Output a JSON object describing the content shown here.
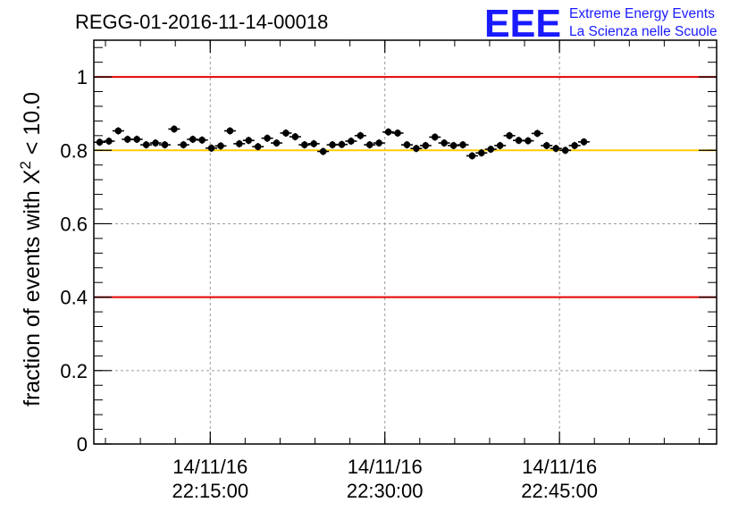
{
  "title": "REGG-01-2016-11-14-00018",
  "logo": {
    "mark": "EEE",
    "line1": "Extreme Energy Events",
    "line2": "La Scienza nelle Scuole",
    "color": "#1a1aff"
  },
  "colors": {
    "threshold_red": "#e60000",
    "threshold_yellow": "#ffcc00",
    "marker": "#000000",
    "grid": "#9a9a9a"
  },
  "chart_data": {
    "type": "scatter",
    "title": "REGG-01-2016-11-14-00018",
    "ylabel_parts": [
      "fraction of events with ",
      "X",
      "2",
      " < 10.0"
    ],
    "xlabel": "",
    "x_start": "22:05:00",
    "x_end": "22:58:30",
    "x_step_min": 0.8,
    "ylim": [
      0,
      1.1
    ],
    "yticks": [
      0,
      0.2,
      0.4,
      0.6,
      0.8,
      1
    ],
    "ytick_labels": [
      "0",
      "0.2",
      "0.4",
      "0.6",
      "0.8",
      "1"
    ],
    "xticks": [
      {
        "time": "22:15:00",
        "date": "14/11/16",
        "clock": "22:15:00"
      },
      {
        "time": "22:30:00",
        "date": "14/11/16",
        "clock": "22:30:00"
      },
      {
        "time": "22:45:00",
        "date": "14/11/16",
        "clock": "22:45:00"
      }
    ],
    "grid": true,
    "reference_lines": [
      {
        "y": 1.0,
        "color": "#e60000"
      },
      {
        "y": 0.8,
        "color": "#ffcc00"
      },
      {
        "y": 0.4,
        "color": "#e60000"
      }
    ],
    "series": [
      {
        "values": [
          0.822,
          0.825,
          0.853,
          0.83,
          0.83,
          0.815,
          0.82,
          0.815,
          0.858,
          0.815,
          0.83,
          0.828,
          0.806,
          0.812,
          0.853,
          0.818,
          0.827,
          0.81,
          0.833,
          0.82,
          0.847,
          0.837,
          0.815,
          0.818,
          0.797,
          0.815,
          0.816,
          0.825,
          0.84,
          0.815,
          0.82,
          0.85,
          0.847,
          0.815,
          0.805,
          0.813,
          0.836,
          0.82,
          0.813,
          0.815,
          0.785,
          0.793,
          0.803,
          0.813,
          0.84,
          0.827,
          0.826,
          0.846,
          0.813,
          0.805,
          0.8,
          0.813,
          0.823
        ],
        "error": 0.01
      }
    ]
  }
}
